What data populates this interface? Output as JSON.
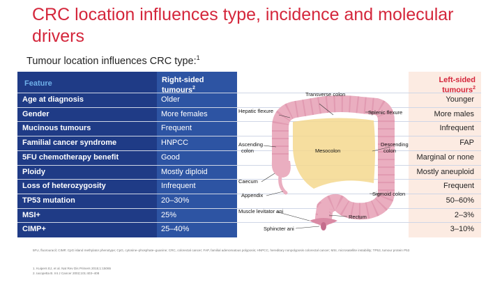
{
  "slide": {
    "title": "CRC location influences type, incidence and molecular drivers",
    "subtitle": "Tumour location influences CRC type:",
    "subtitle_sup": "1",
    "colors": {
      "accent_red": "#d4263b",
      "navy": "#1f3b86",
      "blue": "#2d54a3",
      "peach": "#fcebe2"
    }
  },
  "table": {
    "header_feature": "Feature",
    "header_right": "Right-sided",
    "header_right_2": "tumours",
    "header_right_sup": "2",
    "header_left": "Left-sided",
    "header_left_2": "tumours",
    "header_left_sup": "2",
    "rows": [
      {
        "feature": "Age at diagnosis",
        "right": "Older",
        "left": "Younger"
      },
      {
        "feature": "Gender",
        "right": "More females",
        "left": "More males"
      },
      {
        "feature": "Mucinous tumours",
        "right": "Frequent",
        "left": "Infrequent"
      },
      {
        "feature": "Familial cancer syndrome",
        "right": "HNPCC",
        "left": "FAP"
      },
      {
        "feature": "5FU chemotherapy benefit",
        "right": "Good",
        "left": "Marginal or none"
      },
      {
        "feature": "Ploidy",
        "right": "Mostly diploid",
        "left": "Mostly aneuploid"
      },
      {
        "feature": "Loss of heterozygosity",
        "right": "Infrequent",
        "left": "Frequent"
      },
      {
        "feature": "TP53 mutation",
        "right": "20–30%",
        "left": "50–60%"
      },
      {
        "feature": "MSI+",
        "right": "25%",
        "left": "2–3%"
      },
      {
        "feature": "CIMP+",
        "right": "25–40%",
        "left": "3–10%"
      }
    ]
  },
  "diagram": {
    "labels": {
      "transverse": "Transverse colon",
      "hepatic": "Hepatic flexure",
      "splenic": "Splenic flexure",
      "ascending_1": "Ascending",
      "ascending_2": "colon",
      "descending_1": "Descending",
      "descending_2": "colon",
      "mesocolon": "Mesocolon",
      "caecum": "Caecum",
      "appendix": "Appendix",
      "sigmoid": "Sigmoid colon",
      "rectum": "Rectum",
      "muscle": "Muscle levitator ani",
      "sphincter": "Sphincter ani"
    }
  },
  "footer": {
    "abbreviations": "5FU, fluorouracil; CIMP, CpG island methylator phenotype; CpG, cytosine–phosphate–guanine; CRC, colorectal cancer; FAP, familial adenomatous polyposis; HNPCC, hereditary nonpolyposis colorectal cancer; MSI, microsatellite instability; TP53, tumour protein P53",
    "ref1": "1. Kuipers EJ, et al. Nat Rev Dis Primers 2015;1:15065",
    "ref2": "2. Iacopetta B. Int J Cancer 2002;101:403–408"
  }
}
